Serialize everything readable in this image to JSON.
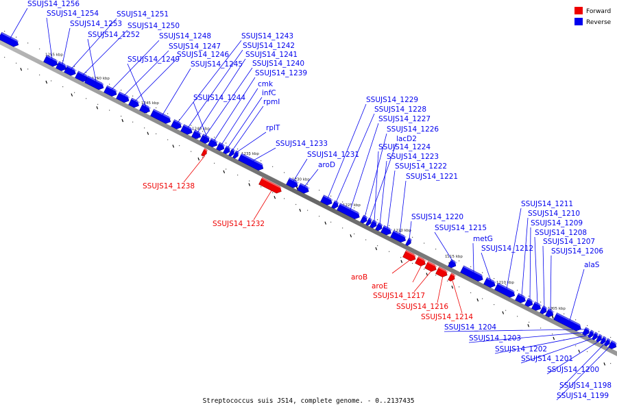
{
  "caption": "Streptococcus suis JS14, complete genome. - 0..2137435",
  "colors": {
    "forward": "#ee0000",
    "reverse": "#0000ee",
    "backbone": "#777777"
  },
  "legend": [
    {
      "label": "Forward",
      "color": "#ee0000"
    },
    {
      "label": "Reverse",
      "color": "#0000ee"
    }
  ],
  "ticks": [
    "1255 kbp",
    "1250 kbp",
    "1245 kbp",
    "1240 kbp",
    "1235 kbp",
    "1230 kbp",
    "1225 kbp",
    "1220 kbp",
    "1215 kbp",
    "1210 kbp",
    "1205 kbp"
  ],
  "genes": [
    {
      "name": "SSUJS14_1256",
      "strand": "reverse"
    },
    {
      "name": "SSUJS14_1254",
      "strand": "reverse"
    },
    {
      "name": "SSUJS14_1251",
      "strand": "reverse"
    },
    {
      "name": "SSUJS14_1253",
      "strand": "reverse"
    },
    {
      "name": "SSUJS14_1250",
      "strand": "reverse"
    },
    {
      "name": "SSUJS14_1252",
      "strand": "reverse"
    },
    {
      "name": "SSUJS14_1248",
      "strand": "reverse"
    },
    {
      "name": "SSUJS14_1247",
      "strand": "reverse"
    },
    {
      "name": "SSUJS14_1246",
      "strand": "reverse"
    },
    {
      "name": "SSUJS14_1249",
      "strand": "reverse"
    },
    {
      "name": "SSUJS14_1245",
      "strand": "reverse"
    },
    {
      "name": "SSUJS14_1243",
      "strand": "reverse"
    },
    {
      "name": "SSUJS14_1242",
      "strand": "reverse"
    },
    {
      "name": "SSUJS14_1241",
      "strand": "reverse"
    },
    {
      "name": "SSUJS14_1240",
      "strand": "reverse"
    },
    {
      "name": "SSUJS14_1239",
      "strand": "reverse"
    },
    {
      "name": "cmk",
      "strand": "reverse"
    },
    {
      "name": "infC",
      "strand": "reverse"
    },
    {
      "name": "SSUJS14_1244",
      "strand": "reverse"
    },
    {
      "name": "rpmI",
      "strand": "reverse"
    },
    {
      "name": "rplT",
      "strand": "reverse"
    },
    {
      "name": "SSUJS14_1233",
      "strand": "reverse"
    },
    {
      "name": "SSUJS14_1238",
      "strand": "forward"
    },
    {
      "name": "SSUJS14_1232",
      "strand": "forward"
    },
    {
      "name": "SSUJS14_1229",
      "strand": "reverse"
    },
    {
      "name": "SSUJS14_1228",
      "strand": "reverse"
    },
    {
      "name": "SSUJS14_1227",
      "strand": "reverse"
    },
    {
      "name": "SSUJS14_1226",
      "strand": "reverse"
    },
    {
      "name": "lacD2",
      "strand": "reverse"
    },
    {
      "name": "SSUJS14_1224",
      "strand": "reverse"
    },
    {
      "name": "SSUJS14_1231",
      "strand": "reverse"
    },
    {
      "name": "SSUJS14_1223",
      "strand": "reverse"
    },
    {
      "name": "aroD",
      "strand": "reverse"
    },
    {
      "name": "SSUJS14_1222",
      "strand": "reverse"
    },
    {
      "name": "SSUJS14_1221",
      "strand": "reverse"
    },
    {
      "name": "SSUJS14_1220",
      "strand": "reverse"
    },
    {
      "name": "SSUJS14_1215",
      "strand": "reverse"
    },
    {
      "name": "metG",
      "strand": "reverse"
    },
    {
      "name": "SSUJS14_1212",
      "strand": "reverse"
    },
    {
      "name": "SSUJS14_1211",
      "strand": "reverse"
    },
    {
      "name": "SSUJS14_1210",
      "strand": "reverse"
    },
    {
      "name": "SSUJS14_1209",
      "strand": "reverse"
    },
    {
      "name": "SSUJS14_1208",
      "strand": "reverse"
    },
    {
      "name": "SSUJS14_1207",
      "strand": "reverse"
    },
    {
      "name": "SSUJS14_1206",
      "strand": "reverse"
    },
    {
      "name": "alaS",
      "strand": "reverse"
    },
    {
      "name": "aroB",
      "strand": "forward"
    },
    {
      "name": "aroE",
      "strand": "forward"
    },
    {
      "name": "SSUJS14_1217",
      "strand": "forward"
    },
    {
      "name": "SSUJS14_1216",
      "strand": "forward"
    },
    {
      "name": "SSUJS14_1214",
      "strand": "forward"
    },
    {
      "name": "SSUJS14_1204",
      "strand": "reverse"
    },
    {
      "name": "SSUJS14_1203",
      "strand": "reverse"
    },
    {
      "name": "SSUJS14_1202",
      "strand": "reverse"
    },
    {
      "name": "SSUJS14_1201",
      "strand": "reverse"
    },
    {
      "name": "SSUJS14_1200",
      "strand": "reverse"
    },
    {
      "name": "SSUJS14_1198",
      "strand": "reverse"
    },
    {
      "name": "SSUJS14_1199",
      "strand": "reverse"
    }
  ]
}
